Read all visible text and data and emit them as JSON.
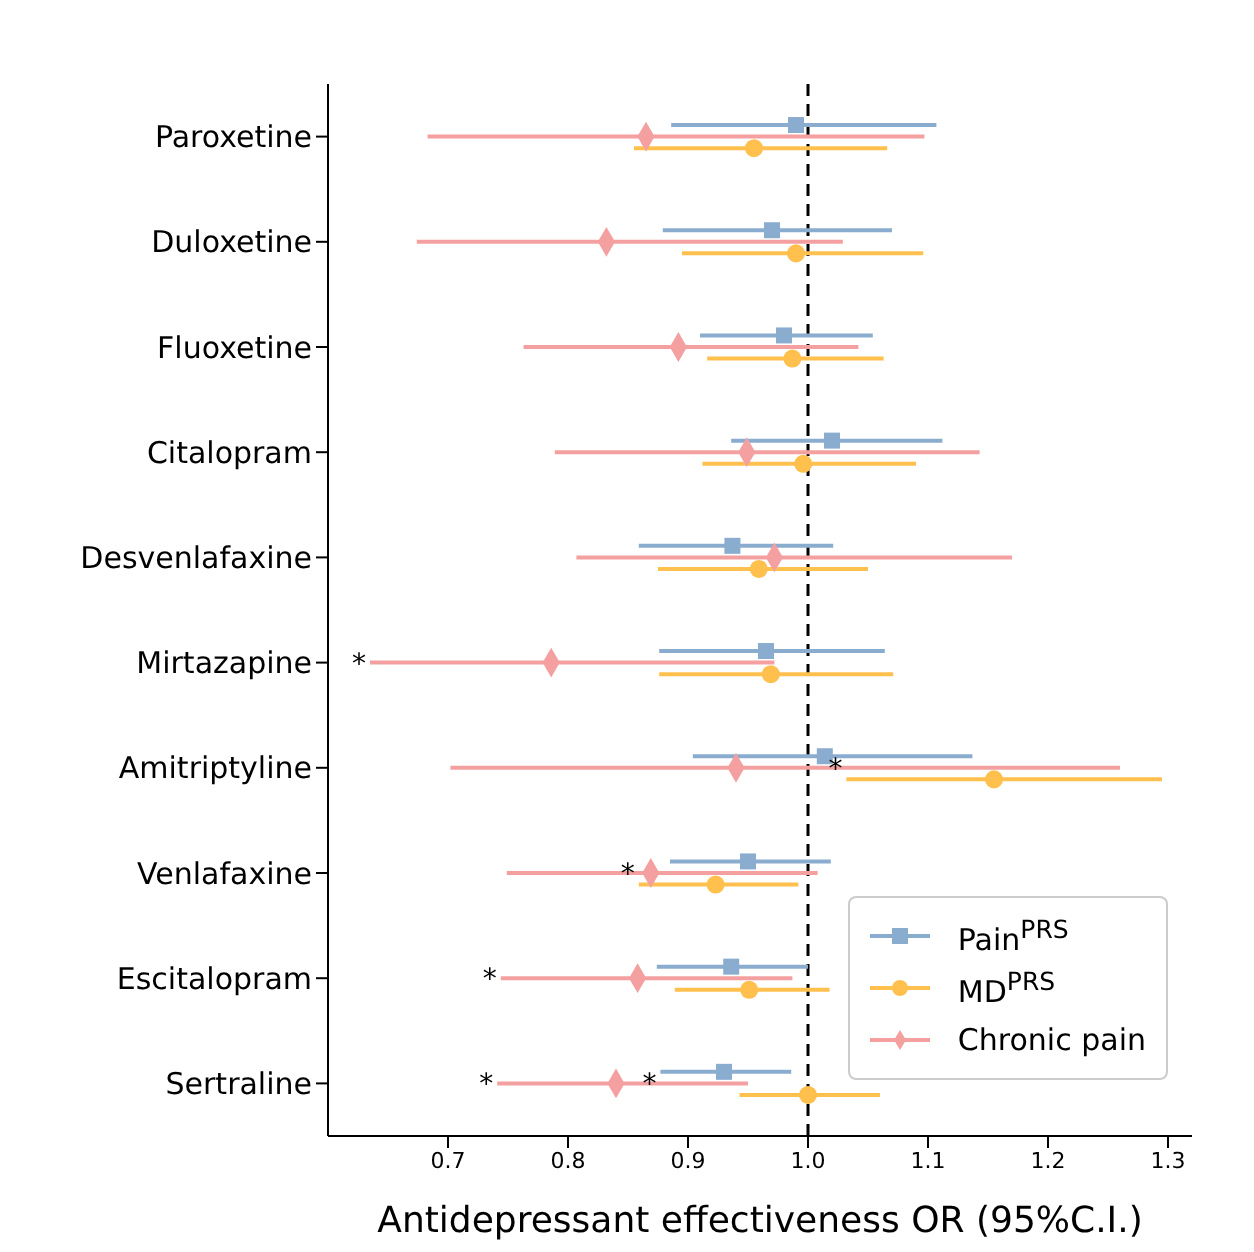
{
  "chart_data": {
    "type": "scatter",
    "orientation": "horizontal",
    "xlabel": "Antidepressant effectiveness OR (95%C.I.)",
    "categories": [
      "Paroxetine",
      "Duloxetine",
      "Fluoxetine",
      "Citalopram",
      "Desvenlafaxine",
      "Mirtazapine",
      "Amitriptyline",
      "Venlafaxine",
      "Escitalopram",
      "Sertraline"
    ],
    "series": [
      {
        "name": "Pain$^{PRS}$",
        "color": "#8aaccf",
        "marker": "square",
        "values": [
          0.99,
          0.97,
          0.98,
          1.02,
          0.937,
          0.965,
          1.014,
          0.95,
          0.936,
          0.93
        ],
        "errors": [
          [
            0.886,
            1.107
          ],
          [
            0.879,
            1.07
          ],
          [
            0.91,
            1.054
          ],
          [
            0.936,
            1.112
          ],
          [
            0.859,
            1.021
          ],
          [
            0.876,
            1.064
          ],
          [
            0.904,
            1.137
          ],
          [
            0.885,
            1.019
          ],
          [
            0.874,
            1.0
          ],
          [
            0.877,
            0.986
          ]
        ]
      },
      {
        "name": "MD$^{PRS}$",
        "color": "#ffc04d",
        "marker": "circle",
        "values": [
          0.955,
          0.99,
          0.987,
          0.996,
          0.959,
          0.969,
          1.155,
          0.923,
          0.951,
          1.0
        ],
        "errors": [
          [
            0.855,
            1.066
          ],
          [
            0.895,
            1.096
          ],
          [
            0.916,
            1.063
          ],
          [
            0.912,
            1.09
          ],
          [
            0.875,
            1.05
          ],
          [
            0.876,
            1.071
          ],
          [
            1.032,
            1.295
          ],
          [
            0.859,
            0.992
          ],
          [
            0.889,
            1.018
          ],
          [
            0.943,
            1.06
          ]
        ]
      },
      {
        "name": "Chronic pain",
        "color": "#f4a0a0",
        "marker": "diamond",
        "values": [
          0.865,
          0.832,
          0.892,
          0.949,
          0.972,
          0.786,
          0.94,
          0.869,
          0.858,
          0.84
        ],
        "errors": [
          [
            0.683,
            1.097
          ],
          [
            0.674,
            1.029
          ],
          [
            0.763,
            1.042
          ],
          [
            0.789,
            1.143
          ],
          [
            0.807,
            1.17
          ],
          [
            0.635,
            0.972
          ],
          [
            0.702,
            1.26
          ],
          [
            0.749,
            1.008
          ],
          [
            0.744,
            0.987
          ],
          [
            0.741,
            0.95
          ]
        ]
      }
    ],
    "xlim": [
      0.6,
      1.32
    ],
    "xticks": [
      0.7,
      0.8,
      0.9,
      {
        "value": 1,
        "label": "1.0"
      },
      1.1,
      1.2,
      1.3
    ],
    "ref_lines": [
      {
        "axis": "x",
        "value": 1,
        "color": "#000000",
        "line_style": "dashed"
      }
    ],
    "annotations": [
      {
        "text": "*",
        "x": 0.635,
        "y": "Mirtazapine"
      },
      {
        "text": "*",
        "x": 1.032,
        "y": "Amitriptyline"
      },
      {
        "text": "*",
        "x": 0.859,
        "y": "Venlafaxine"
      },
      {
        "text": "*",
        "x": 0.744,
        "y": "Escitalopram"
      },
      {
        "text": "*",
        "x": 0.877,
        "y": "Sertraline"
      },
      {
        "text": "*",
        "x": 0.741,
        "y": "Sertraline"
      }
    ],
    "legend": "bottom right",
    "grid": false
  }
}
